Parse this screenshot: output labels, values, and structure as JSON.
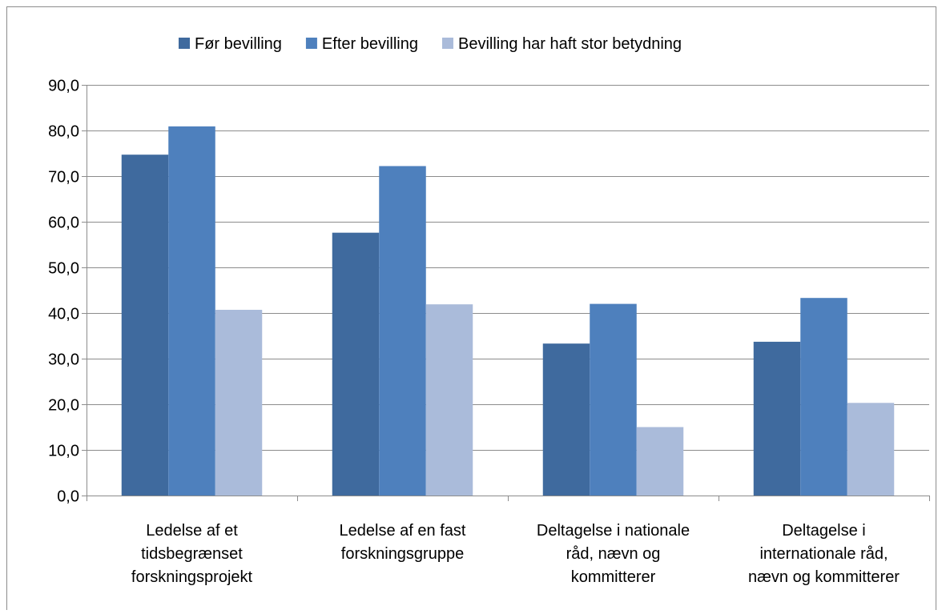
{
  "chart_data": {
    "type": "bar",
    "title": "",
    "xlabel": "",
    "ylabel": "",
    "ylim": [
      0,
      90
    ],
    "yticks": [
      "0,0",
      "10,0",
      "20,0",
      "30,0",
      "40,0",
      "50,0",
      "60,0",
      "70,0",
      "80,0",
      "90,0"
    ],
    "grid": true,
    "legend_position": "top",
    "categories": [
      [
        "Ledelse af et",
        "tidsbegrænset",
        "forskningsprojekt"
      ],
      [
        "Ledelse af en fast",
        "forskningsgruppe"
      ],
      [
        "Deltagelse i nationale",
        "råd, nævn og",
        "kommitterer"
      ],
      [
        "Deltagelse i",
        "internationale råd,",
        "nævn og kommitterer"
      ]
    ],
    "series": [
      {
        "name": "Før bevilling",
        "color": "#3F6A9E",
        "values": [
          74.7,
          57.6,
          33.3,
          33.7
        ]
      },
      {
        "name": "Efter bevilling",
        "color": "#4E80BD",
        "values": [
          80.9,
          72.2,
          42.0,
          43.3
        ]
      },
      {
        "name": "Bevilling har haft stor betydning",
        "color": "#AABBDA",
        "values": [
          40.7,
          41.9,
          15.0,
          20.3
        ]
      }
    ]
  }
}
